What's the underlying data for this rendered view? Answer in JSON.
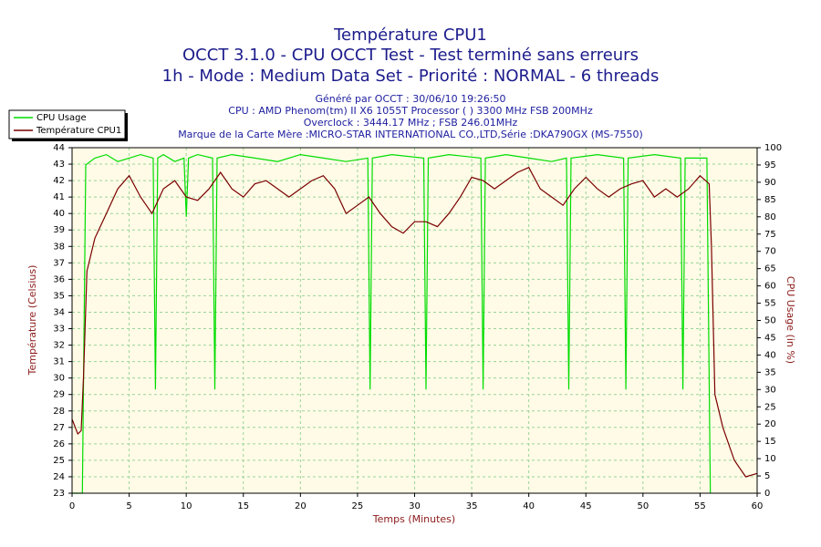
{
  "chart_data": {
    "type": "line",
    "title": "Température CPU1",
    "subtitle": [
      "OCCT 3.1.0 - CPU OCCT Test - Test terminé sans erreurs",
      "1h - Mode : Medium Data Set - Priorité : NORMAL - 6 threads"
    ],
    "info": [
      "Généré par OCCT : 30/06/10 19:26:50",
      "CPU : AMD Phenom(tm) II X6 1055T Processor (  ) 3300 MHz FSB 200MHz",
      "Overclock : 3444.17 MHz ; FSB 246.01MHz",
      "Marque de la Carte Mère :MICRO-STAR INTERNATIONAL CO.,LTD,Série :DKA790GX (MS-7550)"
    ],
    "x_label": "Temps (Minutes)",
    "y_label": "Température (Celsius)",
    "y2_label": "CPU Usage (in %)",
    "xlim": [
      0,
      60
    ],
    "xticks": [
      0,
      5,
      10,
      15,
      20,
      25,
      30,
      35,
      40,
      45,
      50,
      55,
      60
    ],
    "ylim": [
      23,
      44
    ],
    "yticks": [
      23,
      24,
      25,
      26,
      27,
      28,
      29,
      30,
      31,
      32,
      33,
      34,
      35,
      36,
      37,
      38,
      39,
      40,
      41,
      42,
      43,
      44
    ],
    "y2lim": [
      0,
      100
    ],
    "y2ticks": [
      0,
      5,
      10,
      15,
      20,
      25,
      30,
      35,
      40,
      45,
      50,
      55,
      60,
      65,
      70,
      75,
      80,
      85,
      90,
      95,
      100
    ],
    "grid": true,
    "legend": "top-left",
    "series": [
      {
        "name": "CPU Usage",
        "color": "#00dd00",
        "axis": "y2",
        "x": [
          0,
          0.9,
          1.2,
          2,
          3,
          4,
          5,
          6,
          7.1,
          7.3,
          7.5,
          8,
          9,
          9.8,
          10,
          10.2,
          11,
          12.3,
          12.5,
          12.7,
          14,
          16,
          18,
          20,
          22,
          24,
          25.9,
          26.1,
          26.3,
          28,
          30.8,
          31,
          31.2,
          33,
          35.8,
          36,
          36.2,
          38,
          40,
          42,
          43.3,
          43.5,
          43.7,
          46,
          48.3,
          48.5,
          48.7,
          51,
          53.3,
          53.5,
          53.7,
          55.6,
          55.9
        ],
        "values": [
          0,
          0,
          95,
          97,
          98,
          96,
          97,
          98,
          97,
          30,
          97,
          98,
          96,
          97,
          80,
          97,
          98,
          97,
          30,
          97,
          98,
          97,
          96,
          98,
          97,
          96,
          97,
          30,
          97,
          98,
          97,
          30,
          97,
          98,
          97,
          30,
          97,
          98,
          97,
          96,
          97,
          30,
          97,
          98,
          97,
          30,
          97,
          98,
          97,
          30,
          97,
          97,
          0
        ]
      },
      {
        "name": "Température CPU1",
        "color": "#7a0000",
        "axis": "y",
        "x": [
          0,
          0.5,
          0.8,
          1,
          1.3,
          2,
          3,
          4,
          5,
          6,
          7,
          8,
          9,
          10,
          11,
          12,
          13,
          14,
          15,
          16,
          17,
          18,
          19,
          20,
          21,
          22,
          23,
          24,
          25,
          26,
          27,
          28,
          29,
          30,
          31,
          32,
          33,
          34,
          35,
          36,
          37,
          38,
          39,
          40,
          41,
          42,
          43,
          44,
          45,
          46,
          47,
          48,
          49,
          50,
          51,
          52,
          53,
          54,
          55,
          55.8,
          56,
          56.3,
          57,
          58,
          59,
          60
        ],
        "values": [
          27.5,
          26.6,
          26.8,
          30,
          36.5,
          38.5,
          40,
          41.5,
          42.3,
          41,
          40,
          41.5,
          42,
          41,
          40.8,
          41.5,
          42.5,
          41.5,
          41,
          41.8,
          42,
          41.5,
          41,
          41.5,
          42,
          42.3,
          41.5,
          40,
          40.5,
          41,
          40,
          39.2,
          38.8,
          39.5,
          39.5,
          39.2,
          40,
          41,
          42.2,
          42,
          41.5,
          42,
          42.5,
          42.8,
          41.5,
          41,
          40.5,
          41.5,
          42.2,
          41.5,
          41,
          41.5,
          41.8,
          42,
          41,
          41.5,
          41,
          41.5,
          42.3,
          41.8,
          38,
          29,
          27,
          25,
          24,
          24.2
        ]
      }
    ]
  }
}
